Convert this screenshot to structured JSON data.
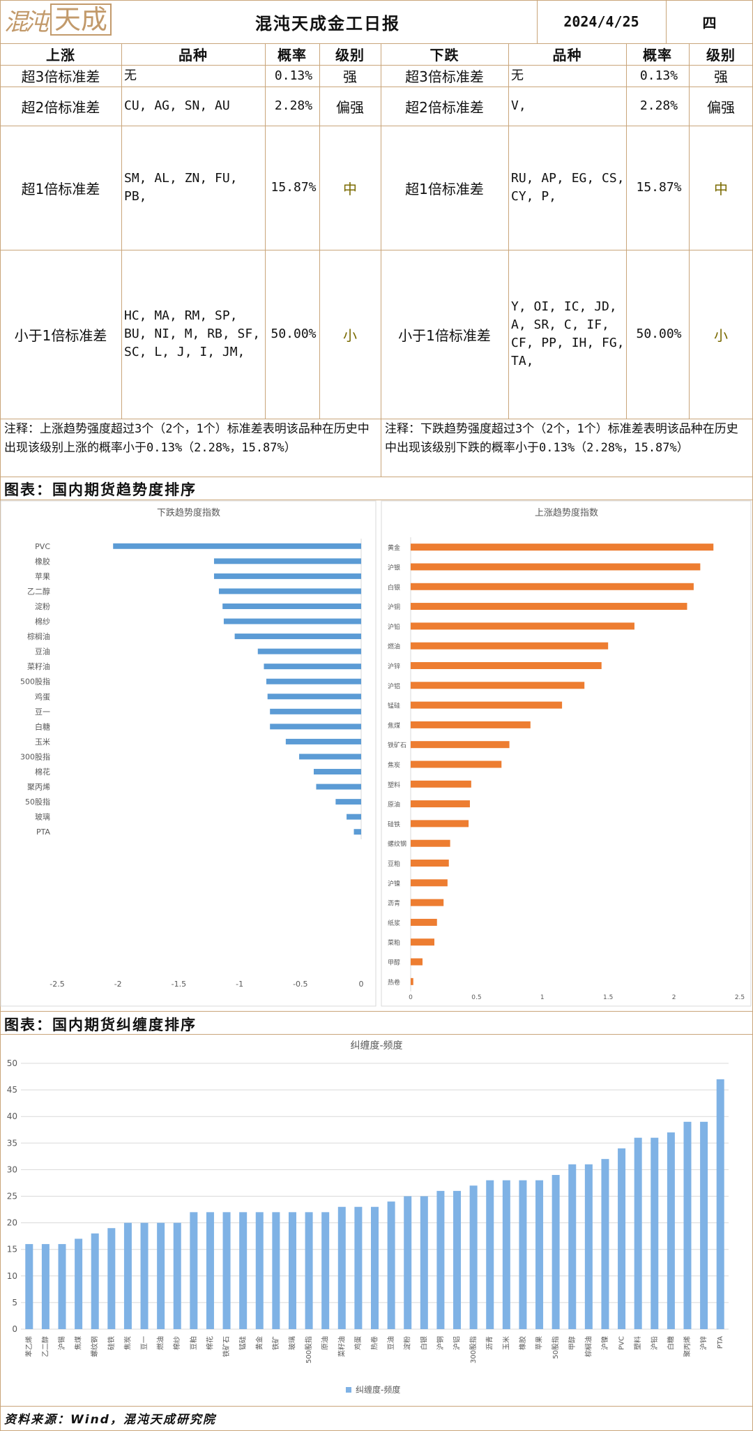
{
  "header": {
    "logo_text_1": "混沌",
    "logo_text_2": "天成",
    "title": "混沌天成金工日报",
    "date": "2024/4/25",
    "weekday": "四"
  },
  "table": {
    "up_headers": [
      "上涨",
      "品种",
      "概率",
      "级别"
    ],
    "down_headers": [
      "下跌",
      "品种",
      "概率",
      "级别"
    ],
    "rows": [
      {
        "up_label": "超3倍标准差",
        "up_items": "无",
        "up_prob": "0.13%",
        "up_level": "强",
        "down_label": "超3倍标准差",
        "down_items": "无",
        "down_prob": "0.13%",
        "down_level": "强"
      },
      {
        "up_label": "超2倍标准差",
        "up_items": "CU, AG, SN, AU",
        "up_prob": "2.28%",
        "up_level": "偏强",
        "down_label": "超2倍标准差",
        "down_items": "V,",
        "down_prob": "2.28%",
        "down_level": "偏强"
      },
      {
        "up_label": "超1倍标准差",
        "up_items": "SM, AL, ZN, FU, PB,",
        "up_prob": "15.87%",
        "up_level": "中",
        "down_label": "超1倍标准差",
        "down_items": "RU, AP, EG, CS, CY, P,",
        "down_prob": "15.87%",
        "down_level": "中"
      },
      {
        "up_label": "小于1倍标准差",
        "up_items": "HC, MA, RM, SP, BU, NI, M, RB, SF, SC, L, J, I, JM,",
        "up_prob": "50.00%",
        "up_level": "小",
        "down_label": "小于1倍标准差",
        "down_items": "Y, OI, IC, JD, A, SR, C, IF, CF, PP, IH, FG, TA,",
        "down_prob": "50.00%",
        "down_level": "小"
      }
    ],
    "note_up": "注释：上涨趋势强度超过3个（2个，1个）标准差表明该品种在历史中出现该级别上涨的概率小于0.13%（2.28%，15.87%）",
    "note_down": "注释：下跌趋势强度超过3个（2个，1个）标准差表明该品种在历史中出现该级别下跌的概率小于0.13%（2.28%，15.87%）"
  },
  "section1_title": "图表：国内期货趋势度排序",
  "section2_title": "图表：国内期货纠缠度排序",
  "footer": "资料来源：Wind，混沌天成研究院",
  "colors": {
    "down_bar": "#5b9bd5",
    "up_bar": "#ed7d31",
    "freq_bar": "#7fb2e5",
    "border": "#c9a57a"
  },
  "chart_data": [
    {
      "type": "bar",
      "orientation": "horizontal",
      "title": "下跌趋势度指数",
      "categories": [
        "PVC",
        "橡胶",
        "苹果",
        "乙二醇",
        "淀粉",
        "棉纱",
        "棕榈油",
        "豆油",
        "菜籽油",
        "500股指",
        "鸡蛋",
        "豆一",
        "白糖",
        "玉米",
        "300股指",
        "棉花",
        "聚丙烯",
        "50股指",
        "玻璃",
        "PTA"
      ],
      "values": [
        -2.04,
        -1.21,
        -1.21,
        -1.17,
        -1.14,
        -1.13,
        -1.04,
        -0.85,
        -0.8,
        -0.78,
        -0.77,
        -0.75,
        -0.75,
        -0.62,
        -0.51,
        -0.39,
        -0.37,
        -0.21,
        -0.12,
        -0.06
      ],
      "xlim": [
        -2.5,
        0
      ],
      "xticks": [
        "-2.5",
        "-2",
        "-1.5",
        "-1",
        "-0.5",
        "0"
      ],
      "grid": false
    },
    {
      "type": "bar",
      "orientation": "horizontal",
      "title": "上涨趋势度指数",
      "categories": [
        "黄金",
        "沪银",
        "白银",
        "沪铜",
        "沪铅",
        "燃油",
        "沪锌",
        "沪铝",
        "锰硅",
        "焦煤",
        "铁矿石",
        "焦炭",
        "塑料",
        "原油",
        "硅铁",
        "螺纹钢",
        "豆粕",
        "沪镍",
        "沥青",
        "纸浆",
        "菜粕",
        "甲醇",
        "热卷"
      ],
      "values": [
        2.3,
        2.2,
        2.15,
        2.1,
        1.7,
        1.5,
        1.45,
        1.32,
        1.15,
        0.91,
        0.75,
        0.69,
        0.46,
        0.45,
        0.44,
        0.3,
        0.29,
        0.28,
        0.25,
        0.2,
        0.18,
        0.09,
        0.02
      ],
      "xlim": [
        0,
        2.5
      ],
      "xticks": [
        "0",
        "0.5",
        "1",
        "1.5",
        "2",
        "2.5"
      ],
      "grid": false
    },
    {
      "type": "bar",
      "title": "纠缠度-频度",
      "categories": [
        "苯乙烯",
        "乙二醇",
        "沪锡",
        "焦煤",
        "螺纹钢",
        "硅铁",
        "焦炭",
        "豆一",
        "燃油",
        "棉纱",
        "豆粕",
        "棉花",
        "铁矿石",
        "锰硅",
        "黄金",
        "铁矿",
        "玻璃",
        "500股指",
        "原油",
        "菜籽油",
        "鸡蛋",
        "热卷",
        "豆油",
        "淀粉",
        "白银",
        "沪铜",
        "沪铝",
        "300股指",
        "沥青",
        "玉米",
        "橡胶",
        "苹果",
        "50股指",
        "甲醇",
        "棕榈油",
        "沪镍",
        "PVC",
        "塑料",
        "沪铅",
        "白糖",
        "聚丙烯",
        "沪锌",
        "PTA"
      ],
      "series": [
        {
          "name": "纠缠度-频度",
          "values": [
            16,
            16,
            16,
            17,
            18,
            19,
            20,
            20,
            20,
            20,
            22,
            22,
            22,
            22,
            22,
            22,
            22,
            22,
            22,
            23,
            23,
            23,
            24,
            25,
            25,
            26,
            26,
            27,
            28,
            28,
            28,
            28,
            29,
            31,
            31,
            32,
            34,
            36,
            36,
            37,
            39,
            39,
            47
          ]
        }
      ],
      "ylim": [
        0,
        50
      ],
      "yticks": [
        "0",
        "5",
        "10",
        "15",
        "20",
        "25",
        "30",
        "35",
        "40",
        "45",
        "50"
      ],
      "legend": "bottom",
      "grid": true
    }
  ]
}
